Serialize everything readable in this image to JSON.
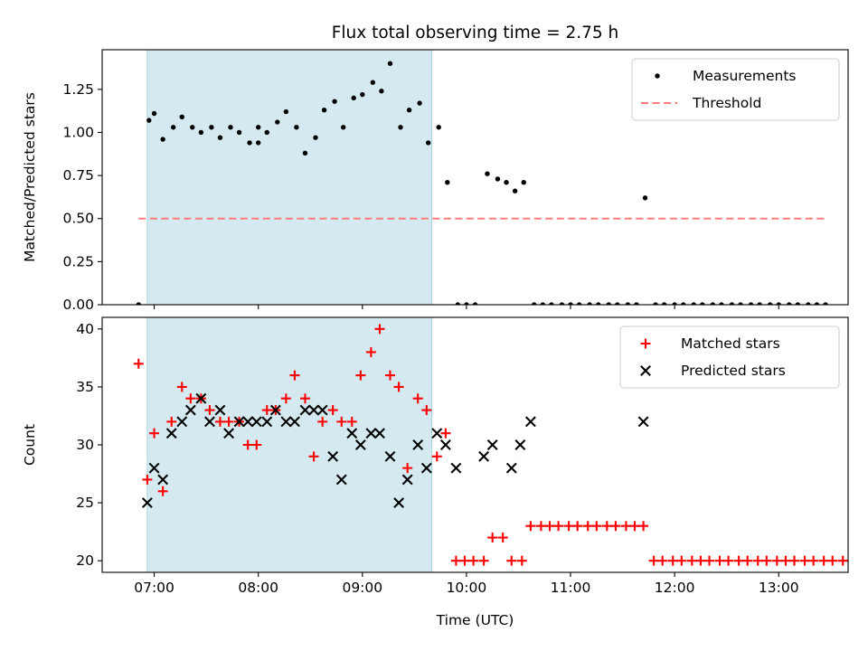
{
  "chart_data": [
    {
      "type": "scatter",
      "title": "Flux total observing time = 2.75 h",
      "xlabel": "",
      "ylabel": "Matched/Predicted stars",
      "xlim": [
        "06:30",
        "13:40"
      ],
      "ylim": [
        0,
        1.48
      ],
      "yticks": [
        "0.00",
        "0.25",
        "0.50",
        "0.75",
        "1.00",
        "1.25"
      ],
      "xticks": [
        "07:00",
        "08:00",
        "09:00",
        "10:00",
        "11:00",
        "12:00",
        "13:00"
      ],
      "xtick_labels_shown": false,
      "shaded_interval": {
        "start": "06:56",
        "end": "09:40",
        "color": "#d4eaf0"
      },
      "legend": {
        "placement": "upper right"
      },
      "series": [
        {
          "name": "Measurements",
          "marker": "dot",
          "color": "#000000",
          "points": [
            [
              "06:51",
              0.0
            ],
            [
              "06:57",
              1.07
            ],
            [
              "07:00",
              1.11
            ],
            [
              "07:05",
              0.96
            ],
            [
              "07:11",
              1.03
            ],
            [
              "07:16",
              1.09
            ],
            [
              "07:22",
              1.03
            ],
            [
              "07:27",
              1.0
            ],
            [
              "07:33",
              1.03
            ],
            [
              "07:38",
              0.97
            ],
            [
              "07:44",
              1.03
            ],
            [
              "07:49",
              1.0
            ],
            [
              "07:55",
              0.94
            ],
            [
              "08:00",
              0.94
            ],
            [
              "08:00",
              1.03
            ],
            [
              "08:05",
              1.0
            ],
            [
              "08:11",
              1.06
            ],
            [
              "08:16",
              1.12
            ],
            [
              "08:22",
              1.03
            ],
            [
              "08:27",
              0.88
            ],
            [
              "08:33",
              0.97
            ],
            [
              "08:38",
              1.13
            ],
            [
              "08:44",
              1.18
            ],
            [
              "08:49",
              1.03
            ],
            [
              "08:55",
              1.2
            ],
            [
              "09:00",
              1.22
            ],
            [
              "09:06",
              1.29
            ],
            [
              "09:11",
              1.24
            ],
            [
              "09:16",
              1.4
            ],
            [
              "09:22",
              1.03
            ],
            [
              "09:27",
              1.13
            ],
            [
              "09:33",
              1.17
            ],
            [
              "09:38",
              0.94
            ],
            [
              "09:44",
              1.03
            ],
            [
              "09:49",
              0.71
            ],
            [
              "09:55",
              0.0
            ],
            [
              "10:00",
              0.0
            ],
            [
              "10:05",
              0.0
            ],
            [
              "10:12",
              0.76
            ],
            [
              "10:18",
              0.73
            ],
            [
              "10:23",
              0.71
            ],
            [
              "10:28",
              0.66
            ],
            [
              "10:33",
              0.71
            ],
            [
              "10:39",
              0.0
            ],
            [
              "10:44",
              0.0
            ],
            [
              "10:49",
              0.0
            ],
            [
              "10:55",
              0.0
            ],
            [
              "11:00",
              0.0
            ],
            [
              "11:05",
              0.0
            ],
            [
              "11:11",
              0.0
            ],
            [
              "11:16",
              0.0
            ],
            [
              "11:22",
              0.0
            ],
            [
              "11:27",
              0.0
            ],
            [
              "11:33",
              0.0
            ],
            [
              "11:38",
              0.0
            ],
            [
              "11:43",
              0.62
            ],
            [
              "11:49",
              0.0
            ],
            [
              "11:54",
              0.0
            ],
            [
              "12:00",
              0.0
            ],
            [
              "12:05",
              0.0
            ],
            [
              "12:11",
              0.0
            ],
            [
              "12:16",
              0.0
            ],
            [
              "12:22",
              0.0
            ],
            [
              "12:27",
              0.0
            ],
            [
              "12:33",
              0.0
            ],
            [
              "12:38",
              0.0
            ],
            [
              "12:44",
              0.0
            ],
            [
              "12:49",
              0.0
            ],
            [
              "12:55",
              0.0
            ],
            [
              "13:00",
              0.0
            ],
            [
              "13:06",
              0.0
            ],
            [
              "13:11",
              0.0
            ],
            [
              "13:17",
              0.0
            ],
            [
              "13:22",
              0.0
            ],
            [
              "13:27",
              0.0
            ]
          ]
        },
        {
          "name": "Threshold",
          "style": "dashed",
          "color": "#ff7b7b",
          "points": [
            [
              "06:51",
              0.5
            ],
            [
              "13:27",
              0.5
            ]
          ]
        }
      ]
    },
    {
      "type": "scatter",
      "title": "",
      "xlabel": "Time (UTC)",
      "ylabel": "Count",
      "xlim": [
        "06:30",
        "13:40"
      ],
      "ylim": [
        19,
        41
      ],
      "yticks": [
        "20",
        "25",
        "30",
        "35",
        "40"
      ],
      "xticks": [
        "07:00",
        "08:00",
        "09:00",
        "10:00",
        "11:00",
        "12:00",
        "13:00"
      ],
      "xtick_labels_shown": true,
      "shaded_interval": {
        "start": "06:56",
        "end": "09:40",
        "color": "#d4eaf0"
      },
      "legend": {
        "placement": "upper right"
      },
      "series": [
        {
          "name": "Matched stars",
          "marker": "plus",
          "color": "#ff0000",
          "points": [
            [
              "06:51",
              37
            ],
            [
              "06:56",
              27
            ],
            [
              "07:00",
              31
            ],
            [
              "07:05",
              26
            ],
            [
              "07:10",
              32
            ],
            [
              "07:16",
              35
            ],
            [
              "07:21",
              34
            ],
            [
              "07:27",
              34
            ],
            [
              "07:32",
              33
            ],
            [
              "07:38",
              32
            ],
            [
              "07:43",
              32
            ],
            [
              "07:49",
              32
            ],
            [
              "07:54",
              30
            ],
            [
              "07:59",
              30
            ],
            [
              "08:05",
              33
            ],
            [
              "08:10",
              33
            ],
            [
              "08:16",
              34
            ],
            [
              "08:21",
              36
            ],
            [
              "08:27",
              34
            ],
            [
              "08:32",
              29
            ],
            [
              "08:37",
              32
            ],
            [
              "08:43",
              33
            ],
            [
              "08:48",
              32
            ],
            [
              "08:54",
              32
            ],
            [
              "08:59",
              36
            ],
            [
              "09:05",
              38
            ],
            [
              "09:10",
              40
            ],
            [
              "09:16",
              36
            ],
            [
              "09:21",
              35
            ],
            [
              "09:26",
              28
            ],
            [
              "09:32",
              34
            ],
            [
              "09:37",
              33
            ],
            [
              "09:43",
              29
            ],
            [
              "09:48",
              31
            ],
            [
              "09:54",
              20
            ],
            [
              "09:59",
              20
            ],
            [
              "10:04",
              20
            ],
            [
              "10:10",
              20
            ],
            [
              "10:15",
              22
            ],
            [
              "10:21",
              22
            ],
            [
              "10:26",
              20
            ],
            [
              "10:32",
              20
            ],
            [
              "10:37",
              23
            ],
            [
              "10:43",
              23
            ],
            [
              "10:48",
              23
            ],
            [
              "10:53",
              23
            ],
            [
              "10:59",
              23
            ],
            [
              "11:04",
              23
            ],
            [
              "11:10",
              23
            ],
            [
              "11:15",
              23
            ],
            [
              "11:21",
              23
            ],
            [
              "11:26",
              23
            ],
            [
              "11:32",
              23
            ],
            [
              "11:37",
              23
            ],
            [
              "11:42",
              23
            ],
            [
              "11:48",
              20
            ],
            [
              "11:53",
              20
            ],
            [
              "11:59",
              20
            ],
            [
              "12:04",
              20
            ],
            [
              "12:10",
              20
            ],
            [
              "12:15",
              20
            ],
            [
              "12:20",
              20
            ],
            [
              "12:26",
              20
            ],
            [
              "12:31",
              20
            ],
            [
              "12:37",
              20
            ],
            [
              "12:42",
              20
            ],
            [
              "12:48",
              20
            ],
            [
              "12:53",
              20
            ],
            [
              "12:59",
              20
            ],
            [
              "13:04",
              20
            ],
            [
              "13:09",
              20
            ],
            [
              "13:15",
              20
            ],
            [
              "13:20",
              20
            ],
            [
              "13:26",
              20
            ],
            [
              "13:31",
              20
            ],
            [
              "13:37",
              20
            ]
          ]
        },
        {
          "name": "Predicted stars",
          "marker": "x",
          "color": "#000000",
          "points": [
            [
              "06:56",
              25
            ],
            [
              "07:00",
              28
            ],
            [
              "07:05",
              27
            ],
            [
              "07:10",
              31
            ],
            [
              "07:16",
              32
            ],
            [
              "07:21",
              33
            ],
            [
              "07:27",
              34
            ],
            [
              "07:32",
              32
            ],
            [
              "07:38",
              33
            ],
            [
              "07:43",
              31
            ],
            [
              "07:49",
              32
            ],
            [
              "07:54",
              32
            ],
            [
              "07:59",
              32
            ],
            [
              "08:05",
              32
            ],
            [
              "08:10",
              33
            ],
            [
              "08:16",
              32
            ],
            [
              "08:21",
              32
            ],
            [
              "08:27",
              33
            ],
            [
              "08:32",
              33
            ],
            [
              "08:37",
              33
            ],
            [
              "08:43",
              29
            ],
            [
              "08:48",
              27
            ],
            [
              "08:54",
              31
            ],
            [
              "08:59",
              30
            ],
            [
              "09:05",
              31
            ],
            [
              "09:10",
              31
            ],
            [
              "09:16",
              29
            ],
            [
              "09:21",
              25
            ],
            [
              "09:26",
              27
            ],
            [
              "09:32",
              30
            ],
            [
              "09:37",
              28
            ],
            [
              "09:43",
              31
            ],
            [
              "09:48",
              30
            ],
            [
              "09:54",
              28
            ],
            [
              "10:10",
              29
            ],
            [
              "10:15",
              30
            ],
            [
              "10:26",
              28
            ],
            [
              "10:31",
              30
            ],
            [
              "10:37",
              32
            ],
            [
              "11:42",
              32
            ]
          ]
        }
      ]
    }
  ]
}
